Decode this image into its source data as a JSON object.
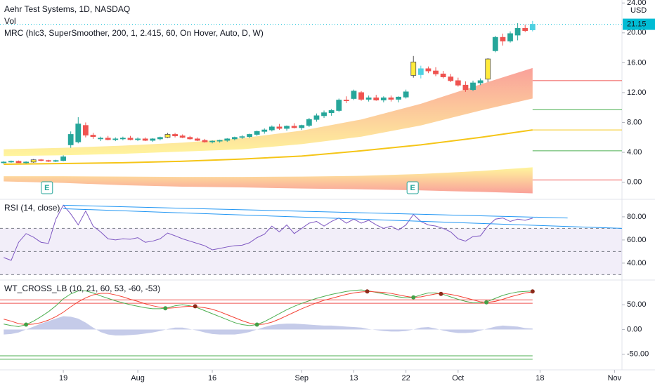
{
  "chart_data": [
    {
      "type": "candlestick",
      "title": "Aehr Test Systems, 1D, NASDAQ",
      "legend_items": [
        "Vol",
        "MRC (hlc3, SuperSmoother, 200, 1, 2.415, 60, On Hover, Auto, D, W)"
      ],
      "unit": "USD",
      "xlim": [
        -8.5,
        75
      ],
      "xticks": [
        {
          "value": 0,
          "label": "19"
        },
        {
          "value": 10,
          "label": "Aug"
        },
        {
          "value": 20,
          "label": "16"
        },
        {
          "value": 32,
          "label": "Sep"
        },
        {
          "value": 39,
          "label": "13"
        },
        {
          "value": 46,
          "label": "22"
        },
        {
          "value": 53,
          "label": "Oct"
        },
        {
          "value": 64,
          "label": "18"
        },
        {
          "value": 74,
          "label": "Nov"
        }
      ],
      "ylim": [
        -2.2,
        24.4
      ],
      "yticks": [
        {
          "value": 0,
          "label": "0.00"
        },
        {
          "value": 4,
          "label": "4.00"
        },
        {
          "value": 8,
          "label": "8.00"
        },
        {
          "value": 12,
          "label": "12.00"
        },
        {
          "value": 16,
          "label": "16.00"
        },
        {
          "value": 20,
          "label": "20.00"
        },
        {
          "value": 24,
          "label": "24.00"
        }
      ],
      "x": [
        -8,
        -7,
        -6,
        -5,
        -4,
        -3,
        -2,
        -1,
        0,
        1,
        2,
        3,
        4,
        5,
        6,
        7,
        8,
        9,
        10,
        11,
        12,
        13,
        14,
        15,
        16,
        17,
        18,
        19,
        20,
        21,
        22,
        23,
        24,
        25,
        26,
        27,
        28,
        29,
        30,
        31,
        32,
        33,
        34,
        35,
        36,
        37,
        38,
        39,
        40,
        41,
        42,
        43,
        44,
        45,
        46,
        47,
        48,
        49,
        50,
        51,
        52,
        53,
        54,
        55,
        56,
        57,
        58,
        59,
        60,
        61,
        62,
        63
      ],
      "open": [
        2.6,
        2.7,
        2.8,
        2.6,
        2.7,
        3.0,
        2.9,
        2.8,
        2.9,
        5.0,
        5.4,
        7.6,
        6.3,
        5.8,
        5.9,
        5.7,
        5.8,
        5.9,
        5.7,
        5.8,
        5.6,
        5.8,
        6.0,
        6.4,
        6.2,
        6.0,
        5.8,
        5.6,
        5.4,
        5.5,
        5.6,
        5.8,
        6.0,
        6.1,
        6.4,
        6.8,
        7.0,
        7.4,
        7.2,
        7.5,
        7.3,
        7.6,
        8.4,
        8.9,
        9.3,
        9.6,
        11.0,
        11.2,
        12.0,
        11.1,
        11.3,
        11.0,
        11.3,
        11.1,
        11.4,
        14.3,
        14.4,
        15.2,
        14.9,
        14.5,
        14.1,
        13.6,
        13.0,
        12.4,
        13.3,
        13.8,
        17.6,
        19.4,
        18.9,
        19.7,
        20.6,
        20.4
      ],
      "high": [
        2.8,
        2.9,
        2.9,
        2.8,
        3.1,
        3.1,
        3.0,
        3.0,
        3.6,
        6.8,
        8.7,
        8.0,
        6.6,
        6.1,
        6.2,
        6.0,
        6.1,
        6.2,
        6.0,
        6.0,
        5.9,
        6.1,
        6.6,
        6.6,
        6.4,
        6.2,
        6.0,
        5.8,
        5.6,
        5.7,
        5.9,
        6.1,
        6.3,
        6.5,
        6.9,
        7.2,
        7.6,
        7.8,
        7.6,
        7.9,
        7.7,
        8.6,
        9.2,
        9.6,
        9.8,
        11.2,
        11.5,
        12.4,
        12.2,
        11.6,
        11.7,
        11.5,
        11.6,
        11.5,
        12.4,
        16.9,
        15.6,
        15.5,
        15.4,
        14.9,
        14.5,
        14.0,
        13.5,
        13.6,
        13.9,
        16.6,
        19.6,
        19.9,
        20.2,
        21.3,
        21.1,
        21.6
      ],
      "low": [
        2.5,
        2.6,
        2.6,
        2.5,
        2.6,
        2.8,
        2.7,
        2.7,
        2.8,
        4.6,
        5.2,
        6.0,
        5.8,
        5.5,
        5.6,
        5.5,
        5.6,
        5.6,
        5.5,
        5.5,
        5.4,
        5.6,
        5.9,
        6.0,
        5.9,
        5.7,
        5.5,
        5.3,
        5.2,
        5.3,
        5.4,
        5.6,
        5.8,
        5.9,
        6.2,
        6.5,
        6.8,
        7.0,
        6.9,
        7.2,
        7.0,
        7.4,
        8.1,
        8.6,
        8.9,
        9.4,
        10.6,
        11.0,
        10.9,
        10.8,
        10.9,
        10.7,
        10.8,
        10.7,
        11.2,
        14.0,
        13.9,
        14.6,
        14.2,
        13.9,
        13.4,
        12.8,
        12.1,
        12.2,
        13.0,
        13.4,
        17.4,
        18.3,
        18.7,
        19.0,
        20.1,
        20.2
      ],
      "close": [
        2.7,
        2.8,
        2.6,
        2.7,
        3.0,
        2.9,
        2.8,
        2.9,
        3.4,
        6.4,
        7.8,
        6.3,
        6.1,
        5.9,
        5.7,
        5.8,
        5.9,
        5.7,
        5.8,
        5.6,
        5.8,
        6.0,
        6.4,
        6.2,
        6.0,
        5.8,
        5.6,
        5.4,
        5.5,
        5.6,
        5.8,
        6.0,
        6.1,
        6.4,
        6.8,
        7.0,
        7.4,
        7.2,
        7.5,
        7.3,
        7.6,
        8.4,
        8.9,
        9.3,
        9.6,
        11.0,
        10.9,
        12.2,
        11.1,
        11.3,
        11.0,
        11.3,
        11.1,
        11.4,
        12.1,
        16.1,
        15.2,
        14.9,
        14.5,
        14.1,
        13.6,
        13.0,
        12.4,
        13.3,
        13.6,
        16.5,
        19.4,
        18.9,
        19.9,
        20.6,
        20.3,
        21.15
      ],
      "colors": [
        "#26a69a",
        "#26a69a",
        "#ef5350",
        "#26a69a",
        "#ffeb3b",
        "#ef5350",
        "#ef5350",
        "#26a69a",
        "#26a69a",
        "#26a69a",
        "#26a69a",
        "#ef5350",
        "#ef5350",
        "#26a69a",
        "#ef5350",
        "#26a69a",
        "#26a69a",
        "#ef5350",
        "#26a69a",
        "#ef5350",
        "#26a69a",
        "#26a69a",
        "#ffeb3b",
        "#ef5350",
        "#ef5350",
        "#ef5350",
        "#ef5350",
        "#ef5350",
        "#26a69a",
        "#26a69a",
        "#26a69a",
        "#26a69a",
        "#26a69a",
        "#26a69a",
        "#26a69a",
        "#26a69a",
        "#26a69a",
        "#ef5350",
        "#26a69a",
        "#ef5350",
        "#26a69a",
        "#26a69a",
        "#26a69a",
        "#26a69a",
        "#26a69a",
        "#26a69a",
        "#ef5350",
        "#26a69a",
        "#ef5350",
        "#26a69a",
        "#ef5350",
        "#26a69a",
        "#ef5350",
        "#26a69a",
        "#26a69a",
        "#ffeb3b",
        "#4dd0e1",
        "#ef5350",
        "#ef5350",
        "#ef5350",
        "#ef5350",
        "#ef5350",
        "#ef5350",
        "#26a69a",
        "#26a69a",
        "#ffeb3b",
        "#26a69a",
        "#ef5350",
        "#26a69a",
        "#26a69a",
        "#ef5350",
        "#4dd0e1"
      ],
      "mrc_x": [
        -8,
        0,
        8,
        16,
        24,
        32,
        40,
        48,
        56,
        63
      ],
      "bands": [
        {
          "upper": [
            4.4,
            4.6,
            4.9,
            5.3,
            5.9,
            6.9,
            8.4,
            10.5,
            13.1,
            15.3
          ],
          "lower": [
            3.5,
            3.6,
            3.8,
            4.1,
            4.4,
            5.1,
            6.1,
            7.6,
            9.6,
            11.2
          ],
          "colors": [
            "#f44336",
            "#ffeb3b"
          ]
        },
        {
          "upper": [
            0.8,
            0.8,
            0.75,
            0.7,
            0.7,
            0.75,
            0.85,
            1.1,
            1.5,
            2.0
          ],
          "lower": [
            0.1,
            -0.1,
            -0.4,
            -0.6,
            -0.7,
            -0.85,
            -0.95,
            -1.1,
            -1.3,
            -1.5
          ],
          "colors": [
            "#ffeb3b",
            "#f44336"
          ]
        }
      ],
      "mean_line": {
        "values": [
          2.4,
          2.5,
          2.6,
          2.8,
          3.1,
          3.5,
          4.2,
          5.0,
          6.0,
          7.0
        ],
        "color": "#f5c518"
      },
      "levels": {
        "values": [
          13.6,
          9.7,
          7.0,
          4.2,
          0.3
        ],
        "colors": [
          "#ef5350",
          "#4caf50",
          "#f5c518",
          "#4caf50",
          "#ef5350"
        ]
      },
      "last_price": {
        "value": 21.15,
        "label": "21.15",
        "color": "#00bcd4"
      },
      "earnings": {
        "x": [
          -2.2,
          46.9
        ],
        "labels": [
          "E",
          "E"
        ],
        "color": "#26a69a"
      }
    },
    {
      "type": "line",
      "title": "RSI (14, close)",
      "color": "#7e57c2",
      "ylim": [
        26,
        94.5
      ],
      "yticks": [
        {
          "value": 40,
          "label": "40.00"
        },
        {
          "value": 60,
          "label": "60.00"
        },
        {
          "value": 80,
          "label": "80.00"
        }
      ],
      "values": [
        44.8,
        42.4,
        58,
        65.5,
        62.4,
        58,
        57,
        78,
        90,
        82.5,
        73,
        85,
        72,
        67,
        61,
        60,
        61,
        60.6,
        62,
        58,
        59,
        61,
        66,
        63.6,
        61,
        59,
        57,
        55,
        51.5,
        52.7,
        54,
        55,
        55.5,
        57.6,
        62,
        65,
        72,
        67,
        73,
        65.5,
        70,
        74.5,
        76,
        72,
        76,
        79,
        74.5,
        78,
        74.5,
        77,
        73,
        70,
        72,
        68.5,
        73,
        82,
        76,
        73,
        72,
        70,
        67,
        61,
        59,
        63,
        63.6,
        72,
        78,
        79,
        76,
        78,
        77,
        78.8
      ],
      "band": [
        30,
        70
      ],
      "levels": {
        "values": [
          70,
          50,
          30
        ],
        "colors": [
          "#787b86",
          "#787b86",
          "#787b86"
        ]
      },
      "level_style": "dashed",
      "trendlines": [
        {
          "x": [
            0,
            67.7
          ],
          "values": [
            90,
            79
          ],
          "color": "#2196f3"
        },
        {
          "x": [
            0,
            75
          ],
          "values": [
            87,
            70
          ],
          "color": "#2196f3"
        }
      ]
    },
    {
      "type": "line",
      "title": "WT_CROSS_LB (10, 21, 60, 53, -60, -53)",
      "ylim": [
        -80,
        98.6
      ],
      "yticks": [
        {
          "value": -50,
          "label": "-50.00"
        },
        {
          "value": 0,
          "label": "0.00"
        },
        {
          "value": 50,
          "label": "50.00"
        }
      ],
      "series": [
        {
          "color": "#4caf50",
          "values": [
            11,
            8,
            6,
            10,
            17,
            26,
            36,
            48,
            62,
            72,
            78,
            78,
            74,
            68,
            63,
            58,
            54,
            50,
            47,
            44,
            42,
            42,
            44,
            48,
            50,
            48,
            44,
            38,
            32,
            26,
            20,
            14,
            10,
            8,
            10,
            16,
            24,
            32,
            40,
            47,
            53,
            58,
            63,
            67,
            71,
            74,
            77,
            79,
            80,
            78,
            75,
            72,
            69,
            66,
            64,
            65,
            70,
            74,
            74,
            71,
            66,
            61,
            57,
            54,
            54,
            57,
            63,
            69,
            73,
            76,
            77,
            78
          ]
        },
        {
          "color": "#f44336",
          "values": [
            21,
            17,
            12,
            10,
            11,
            14,
            19,
            26,
            35,
            46,
            56,
            64,
            70,
            73,
            73,
            70,
            66,
            61,
            57,
            52,
            48,
            45,
            43,
            44,
            46,
            47,
            46,
            44,
            41,
            36,
            30,
            24,
            18,
            13,
            10,
            11,
            15,
            21,
            28,
            35,
            42,
            48,
            54,
            59,
            63,
            67,
            71,
            74,
            76,
            77,
            76,
            75,
            73,
            70,
            67,
            65,
            66,
            69,
            72,
            73,
            71,
            68,
            64,
            60,
            56,
            55,
            57,
            61,
            66,
            70,
            74,
            76
          ]
        }
      ],
      "histogram": {
        "color": "#9fa8da",
        "values": [
          -10,
          -9,
          -6,
          0,
          6,
          12,
          17,
          22,
          27,
          26,
          22,
          14,
          4,
          -5,
          -10,
          -12,
          -12,
          -11,
          -10,
          -8,
          -6,
          -3,
          1,
          4,
          4,
          1,
          -2,
          -6,
          -9,
          -10,
          -10,
          -10,
          -8,
          -5,
          0,
          5,
          9,
          11,
          12,
          12,
          11,
          10,
          9,
          8,
          8,
          7,
          6,
          5,
          4,
          1,
          -1,
          -3,
          -4,
          -4,
          -3,
          0,
          4,
          5,
          2,
          -2,
          -5,
          -7,
          -7,
          -6,
          -2,
          2,
          6,
          8,
          7,
          6,
          3,
          2
        ]
      },
      "crosses": {
        "x": [
          -5,
          13.7,
          17.7,
          26,
          40.8,
          47,
          50.7,
          56.8,
          63
        ],
        "values": [
          10,
          43,
          47,
          10,
          77,
          65,
          72,
          55,
          77
        ],
        "colors": [
          "#43a047",
          "#43a047",
          "#8d2a1a",
          "#43a047",
          "#8d2a1a",
          "#43a047",
          "#8d2a1a",
          "#43a047",
          "#8d2a1a"
        ]
      },
      "levels": {
        "values": [
          60,
          53,
          -53,
          -60
        ],
        "colors": [
          "#ef5350",
          "#ef5350",
          "#4caf50",
          "#4caf50"
        ]
      }
    }
  ]
}
